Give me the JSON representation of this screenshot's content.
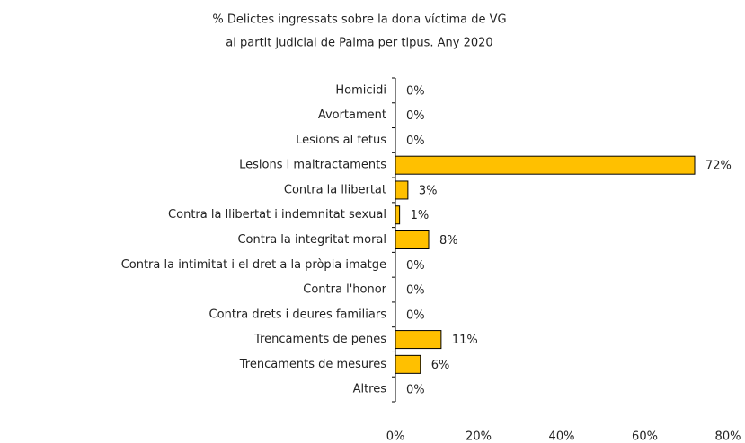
{
  "chart_data": {
    "type": "hbar",
    "title": [
      "% Delictes ingressats sobre la dona víctima de VG",
      "al partit judicial de Palma per tipus. Any 2020"
    ],
    "categories": [
      "Homicidi",
      "Avortament",
      "Lesions al fetus",
      "Lesions i maltractaments",
      "Contra la llibertat",
      "Contra la llibertat i indemnitat sexual",
      "Contra la integritat moral",
      "Contra la intimitat i el dret a la pròpia imatge",
      "Contra l'honor",
      "Contra drets i deures familiars",
      "Trencaments de penes",
      "Trencaments de mesures",
      "Altres"
    ],
    "values": [
      0,
      0,
      0,
      72,
      3,
      1,
      8,
      0,
      0,
      0,
      11,
      6,
      0
    ],
    "value_labels": [
      "0%",
      "0%",
      "0%",
      "72%",
      "3%",
      "1%",
      "8%",
      "0%",
      "0%",
      "0%",
      "11%",
      "6%",
      "0%"
    ],
    "color": "#ffc000",
    "xlim": [
      0,
      80
    ],
    "xticks": [
      {
        "value": 0,
        "label": "0%"
      },
      {
        "value": 20,
        "label": "20%"
      },
      {
        "value": 40,
        "label": "40%"
      },
      {
        "value": 60,
        "label": "60%"
      },
      {
        "value": 80,
        "label": "80%"
      }
    ]
  }
}
